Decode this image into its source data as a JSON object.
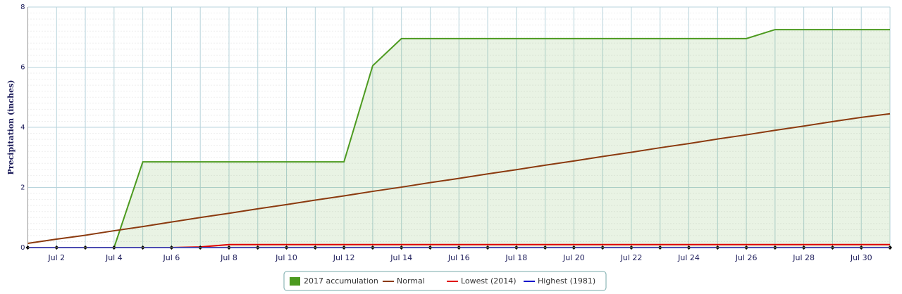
{
  "chart_data": {
    "type": "line",
    "y_label": "Precipitation (inches)",
    "categories": [
      null,
      "Jul 2",
      null,
      "Jul 4",
      null,
      "Jul 6",
      null,
      "Jul 8",
      null,
      "Jul 10",
      null,
      "Jul 12",
      null,
      "Jul 14",
      null,
      "Jul 16",
      null,
      "Jul 18",
      null,
      "Jul 20",
      null,
      "Jul 22",
      null,
      "Jul 24",
      null,
      "Jul 26",
      null,
      "Jul 28",
      null,
      "Jul 30",
      null
    ],
    "series": [
      {
        "name": "2017 accumulation",
        "color": "#4c9a1f",
        "area": true,
        "values": [
          0,
          0,
          0,
          0,
          2.85,
          2.85,
          2.85,
          2.85,
          2.85,
          2.85,
          2.85,
          2.85,
          6.05,
          6.95,
          6.95,
          6.95,
          6.95,
          6.95,
          6.95,
          6.95,
          6.95,
          6.95,
          6.95,
          6.95,
          6.95,
          6.95,
          7.25,
          7.25,
          7.25,
          7.25,
          7.25
        ]
      },
      {
        "name": "Normal",
        "color": "#8b3a0f",
        "values": [
          0.14,
          0.28,
          0.41,
          0.56,
          0.7,
          0.85,
          1.0,
          1.14,
          1.29,
          1.43,
          1.58,
          1.72,
          1.87,
          2.01,
          2.16,
          2.3,
          2.45,
          2.59,
          2.74,
          2.88,
          3.03,
          3.17,
          3.32,
          3.46,
          3.61,
          3.75,
          3.9,
          4.04,
          4.19,
          4.33,
          4.45
        ]
      },
      {
        "name": "Lowest (2014)",
        "color": "#e00000",
        "values": [
          0,
          0,
          0,
          0,
          0,
          0,
          0.02,
          0.1,
          0.1,
          0.1,
          0.1,
          0.1,
          0.1,
          0.1,
          0.1,
          0.1,
          0.1,
          0.1,
          0.1,
          0.1,
          0.1,
          0.1,
          0.1,
          0.1,
          0.1,
          0.1,
          0.1,
          0.1,
          0.1,
          0.1,
          0.1
        ]
      },
      {
        "name": "Highest (1981)",
        "color": "#0000cc",
        "markers": true,
        "values": [
          0,
          0,
          0,
          0,
          0,
          0,
          0,
          0,
          0,
          0,
          0,
          0,
          0,
          0,
          0,
          0,
          0,
          0,
          0,
          0,
          0,
          0,
          0,
          0,
          0,
          0,
          0,
          0,
          0,
          0,
          0
        ]
      }
    ],
    "ylim": [
      0,
      8
    ],
    "yticks": [
      0,
      2,
      4,
      6,
      8
    ],
    "grid": true
  }
}
